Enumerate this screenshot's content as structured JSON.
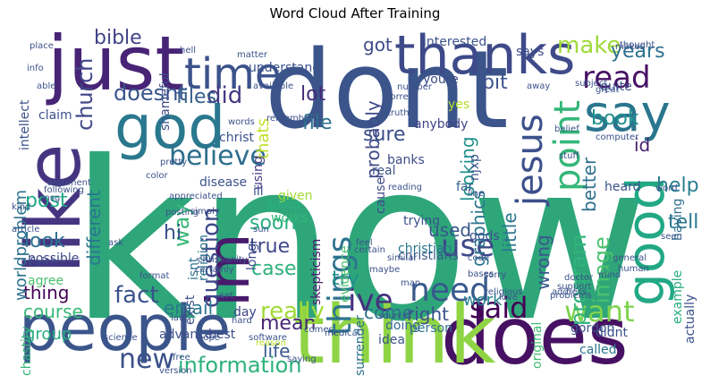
{
  "title": "Word Cloud After Training",
  "words": [
    {
      "text": "know",
      "color": "#2ea67a"
    },
    {
      "text": "dont",
      "color": "#3b558b"
    },
    {
      "text": "people",
      "color": "#3b558b"
    },
    {
      "text": "does",
      "color": "#471163"
    },
    {
      "text": "think",
      "color": "#8fd444"
    },
    {
      "text": "just",
      "color": "#482476"
    },
    {
      "text": "like",
      "color": "#453581"
    },
    {
      "text": "god",
      "color": "#2a788e"
    },
    {
      "text": "thanks",
      "color": "#3e4a89"
    },
    {
      "text": "time",
      "color": "#3b528b"
    },
    {
      "text": "im",
      "color": "#481a6c"
    },
    {
      "text": "say",
      "color": "#2a768e"
    },
    {
      "text": "good",
      "color": "#22a884"
    },
    {
      "text": "jesus",
      "color": "#3c508b"
    },
    {
      "text": "point",
      "color": "#35b779"
    },
    {
      "text": "things",
      "color": "#2c738e"
    },
    {
      "text": "use",
      "color": "#3e4989"
    },
    {
      "text": "need",
      "color": "#38598c"
    },
    {
      "text": "believe",
      "color": "#2e6e8e"
    },
    {
      "text": "did",
      "color": "#443983"
    },
    {
      "text": "read",
      "color": "#471164"
    },
    {
      "text": "make",
      "color": "#a0da39"
    },
    {
      "text": "said",
      "color": "#440154"
    },
    {
      "text": "want",
      "color": "#7fd34e"
    },
    {
      "text": "question",
      "color": "#3f4889"
    },
    {
      "text": "way",
      "color": "#37b878"
    },
    {
      "text": "new",
      "color": "#3b518b"
    },
    {
      "text": "fact",
      "color": "#3b528b"
    },
    {
      "text": "ive",
      "color": "#46307e"
    },
    {
      "text": "mean",
      "color": "#482576"
    },
    {
      "text": "really",
      "color": "#a2da37"
    },
    {
      "text": "information",
      "color": "#2db27d"
    },
    {
      "text": "bible",
      "color": "#414487"
    },
    {
      "text": "church",
      "color": "#3f4788"
    },
    {
      "text": "doesnt",
      "color": "#39568c"
    },
    {
      "text": "files",
      "color": "#355f8d"
    },
    {
      "text": "got",
      "color": "#3e4c8a"
    },
    {
      "text": "bit",
      "color": "#3b528b"
    },
    {
      "text": "years",
      "color": "#2c728e"
    },
    {
      "text": "lot",
      "color": "#472c7a"
    },
    {
      "text": "file",
      "color": "#2d708e"
    },
    {
      "text": "sure",
      "color": "#3d4e8a"
    },
    {
      "text": "book",
      "color": "#21908d"
    },
    {
      "text": "help",
      "color": "#277f8e"
    },
    {
      "text": "id",
      "color": "#482071"
    },
    {
      "text": "tell",
      "color": "#2a778e"
    },
    {
      "text": "post",
      "color": "#22a785"
    },
    {
      "text": "look",
      "color": "#2d718e"
    },
    {
      "text": "hi",
      "color": "#3b518b"
    },
    {
      "text": "soon",
      "color": "#2ab07f"
    },
    {
      "text": "true",
      "color": "#3f4889"
    },
    {
      "text": "case",
      "color": "#2db27d"
    },
    {
      "text": "try",
      "color": "#21918c"
    },
    {
      "text": "thing",
      "color": "#450457"
    },
    {
      "text": "email",
      "color": "#2a788e"
    },
    {
      "text": "course",
      "color": "#38b977"
    },
    {
      "text": "group",
      "color": "#28ae80"
    },
    {
      "text": "life",
      "color": "#38598c"
    },
    {
      "text": "come",
      "color": "#2c718e"
    },
    {
      "text": "right",
      "color": "#3b528b"
    },
    {
      "text": "work",
      "color": "#26828e"
    },
    {
      "text": "graphics",
      "color": "#2b748e"
    },
    {
      "text": "image",
      "color": "#4ac16d"
    },
    {
      "text": "program",
      "color": "#31b57b"
    },
    {
      "text": "wrong",
      "color": "#39568c"
    },
    {
      "text": "little",
      "color": "#2a768e"
    },
    {
      "text": "used",
      "color": "#39558c"
    },
    {
      "text": "looking",
      "color": "#21918c"
    },
    {
      "text": "better",
      "color": "#2e6f8e"
    },
    {
      "text": "different",
      "color": "#2a778e"
    },
    {
      "text": "worldproblem",
      "color": "#2c728e"
    },
    {
      "text": "probably",
      "color": "#3e4a89"
    },
    {
      "text": "thats",
      "color": "#c2df23"
    },
    {
      "text": "using",
      "color": "#443a83"
    },
    {
      "text": "christians",
      "color": "#38598c"
    },
    {
      "text": "skepticism",
      "color": "#481a6c"
    },
    {
      "text": "gordon",
      "color": "#3b528b"
    },
    {
      "text": "actually",
      "color": "#3b518b"
    },
    {
      "text": "called",
      "color": "#2a768e"
    },
    {
      "text": "having",
      "color": "#2d708e"
    },
    {
      "text": "example",
      "color": "#27ad81"
    },
    {
      "text": "surrender",
      "color": "#2c718e"
    },
    {
      "text": "isnt",
      "color": "#2c728e"
    },
    {
      "text": "faith",
      "color": "#3f4788"
    },
    {
      "text": "agree",
      "color": "#4ac16d"
    },
    {
      "text": "possible",
      "color": "#3e4989"
    },
    {
      "text": "day",
      "color": "#414487"
    },
    {
      "text": "long",
      "color": "#3d4d8a"
    },
    {
      "text": "christian",
      "color": "#2a768e"
    },
    {
      "text": "doing",
      "color": "#31688e"
    },
    {
      "text": "person",
      "color": "#2c718e"
    },
    {
      "text": "original",
      "color": "#3fbc73"
    },
    {
      "text": "advance",
      "color": "#3b528b"
    },
    {
      "text": "best",
      "color": "#3e4c8a"
    },
    {
      "text": "didnt",
      "color": "#3b528b"
    },
    {
      "text": "evidence",
      "color": "#4ac16d"
    },
    {
      "text": "trying",
      "color": "#3b528b"
    },
    {
      "text": "gods",
      "color": "#3b528b"
    },
    {
      "text": "far",
      "color": "#35608d"
    },
    {
      "text": "heard",
      "color": "#3b528b"
    },
    {
      "text": "anybody",
      "color": "#414487"
    },
    {
      "text": "yes",
      "color": "#b5de2b"
    },
    {
      "text": "banks",
      "color": "#3e4c8a"
    },
    {
      "text": "njxp",
      "color": "#3b528b"
    },
    {
      "text": "cause",
      "color": "#3e4989"
    },
    {
      "text": "real",
      "color": "#3b528b"
    },
    {
      "text": "given",
      "color": "#a2da37"
    },
    {
      "text": "ill",
      "color": "#3b528b"
    },
    {
      "text": "going",
      "color": "#2ab07f"
    },
    {
      "text": "works",
      "color": "#35b779"
    },
    {
      "text": "religion",
      "color": "#2c728e"
    },
    {
      "text": "exist",
      "color": "#3b528b"
    },
    {
      "text": "chastity",
      "color": "#35b779"
    },
    {
      "text": "quite",
      "color": "#3b528b"
    },
    {
      "text": "interested",
      "color": "#3b528b"
    },
    {
      "text": "says",
      "color": "#3e4c8a"
    },
    {
      "text": "understand",
      "color": "#3b528b"
    },
    {
      "text": "shameful",
      "color": "#3e4c8a"
    },
    {
      "text": "intellect",
      "color": "#3b528b"
    },
    {
      "text": "youre",
      "color": "#3e4c8a"
    },
    {
      "text": "claim",
      "color": "#3b528b"
    },
    {
      "text": "christ",
      "color": "#3b528b"
    },
    {
      "text": "disease",
      "color": "#3b528b"
    },
    {
      "text": "simply",
      "color": "#3b528b"
    },
    {
      "text": "posting",
      "color": "#3b528b"
    },
    {
      "text": "certainly",
      "color": "#3b528b"
    },
    {
      "text": "christianity",
      "color": "#3b528b"
    },
    {
      "text": "stuff",
      "color": "#3b528b"
    },
    {
      "text": "hell",
      "color": "#3b528b"
    },
    {
      "text": "info",
      "color": "#3b528b"
    },
    {
      "text": "able",
      "color": "#3b528b"
    },
    {
      "text": "following",
      "color": "#3b528b"
    },
    {
      "text": "argument",
      "color": "#3b528b"
    },
    {
      "text": "msg",
      "color": "#3b528b"
    },
    {
      "text": "software",
      "color": "#3b528b"
    },
    {
      "text": "reason",
      "color": "#b5de2b"
    },
    {
      "text": "idea",
      "color": "#3b528b"
    },
    {
      "text": "source",
      "color": "#3b528b"
    },
    {
      "text": "saying",
      "color": "#3b528b"
    },
    {
      "text": "comes",
      "color": "#3b528b"
    },
    {
      "text": "medical",
      "color": "#3b528b"
    },
    {
      "text": "hard",
      "color": "#3b528b"
    },
    {
      "text": "hope",
      "color": "#3b528b"
    },
    {
      "text": "science",
      "color": "#3b528b"
    },
    {
      "text": "version",
      "color": "#3b528b"
    },
    {
      "text": "free",
      "color": "#3b528b"
    },
    {
      "text": "words",
      "color": "#3b528b"
    },
    {
      "text": "matter",
      "color": "#3b528b"
    },
    {
      "text": "remember",
      "color": "#3b528b"
    },
    {
      "text": "number",
      "color": "#3b528b"
    },
    {
      "text": "correct",
      "color": "#3b528b"
    },
    {
      "text": "truth",
      "color": "#3b528b"
    },
    {
      "text": "subject",
      "color": "#3b528b"
    },
    {
      "text": "belief",
      "color": "#3b528b"
    },
    {
      "text": "makes",
      "color": "#3b528b"
    },
    {
      "text": "thought",
      "color": "#3b528b"
    },
    {
      "text": "great",
      "color": "#3b528b"
    },
    {
      "text": "computer",
      "color": "#3b528b"
    },
    {
      "text": "word",
      "color": "#3b528b"
    },
    {
      "text": "seen",
      "color": "#3b528b"
    },
    {
      "text": "human",
      "color": "#3b528b"
    },
    {
      "text": "general",
      "color": "#3b528b"
    },
    {
      "text": "mind",
      "color": "#3b528b"
    },
    {
      "text": "doctor",
      "color": "#3b528b"
    },
    {
      "text": "support",
      "color": "#3b528b"
    },
    {
      "text": "address",
      "color": "#3b528b"
    },
    {
      "text": "problems",
      "color": "#3b528b"
    },
    {
      "text": "love",
      "color": "#3b528b"
    },
    {
      "text": "man",
      "color": "#3b528b"
    },
    {
      "text": "certain",
      "color": "#3b528b"
    },
    {
      "text": "feel",
      "color": "#3b528b"
    },
    {
      "text": "similar",
      "color": "#3b528b"
    },
    {
      "text": "code",
      "color": "#3b528b"
    },
    {
      "text": "line",
      "color": "#3b528b"
    },
    {
      "text": "reading",
      "color": "#3b528b"
    },
    {
      "text": "maybe",
      "color": "#3b528b"
    },
    {
      "text": "religious",
      "color": "#3b528b"
    },
    {
      "text": "sorry",
      "color": "#3b528b"
    },
    {
      "text": "bases",
      "color": "#3b528b"
    },
    {
      "text": "kind",
      "color": "#3b528b"
    },
    {
      "text": "article",
      "color": "#3b528b"
    },
    {
      "text": "ask",
      "color": "#3b528b"
    },
    {
      "text": "color",
      "color": "#3b528b"
    },
    {
      "text": "place",
      "color": "#3b528b"
    },
    {
      "text": "appreciated",
      "color": "#3b528b"
    },
    {
      "text": "format",
      "color": "#3b528b"
    },
    {
      "text": "set",
      "color": "#3b528b"
    },
    {
      "text": "law",
      "color": "#3b528b"
    },
    {
      "text": "away",
      "color": "#3b528b"
    },
    {
      "text": "pretty",
      "color": "#3b528b"
    },
    {
      "text": "sun",
      "color": "#3b528b"
    },
    {
      "text": "available",
      "color": "#3b528b"
    }
  ]
}
